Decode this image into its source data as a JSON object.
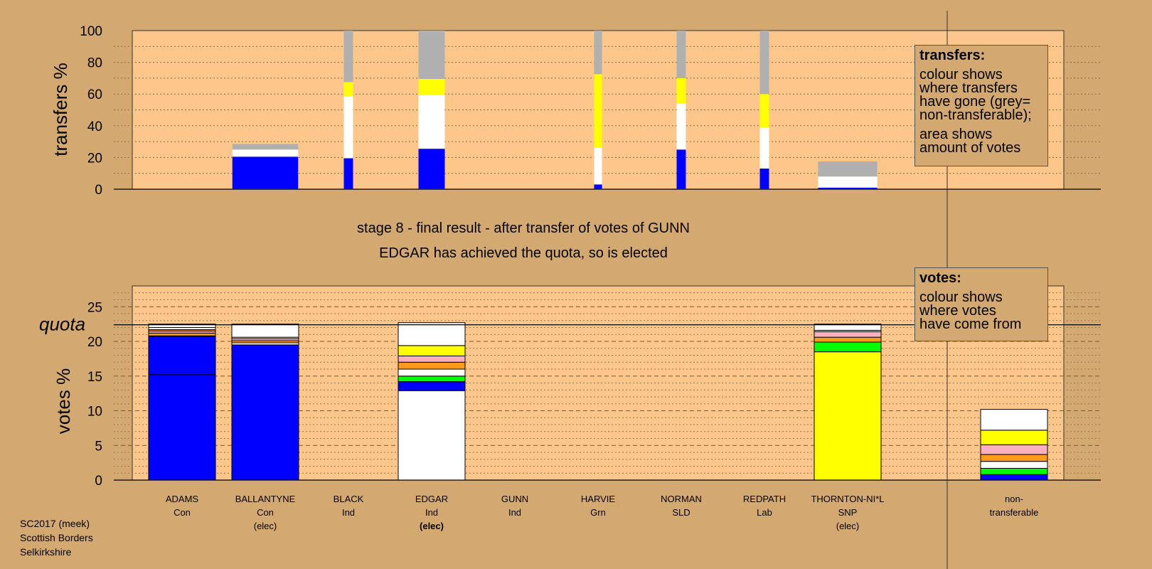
{
  "colors": {
    "page_bg": "#d4a871",
    "plot_bg": "#fdc68a",
    "Con": "#0000ff",
    "Ind_white": "#ffffff",
    "Grey": "#b0b0b0",
    "SNP": "#ffff00",
    "Grn": "#00ff00",
    "Orange": "#ff9a1a",
    "Pink": "#ffb0c0",
    "Lab": "#ff0000"
  },
  "stage": {
    "line1": "stage 8 - final result - after transfer of votes of GUNN",
    "line2": "EDGAR has achieved the quota, so is elected"
  },
  "legend_transfers": {
    "title": "transfers:",
    "lines": [
      "colour shows",
      "where transfers",
      "have gone (grey=",
      "non-transferable);"
    ],
    "lines2": [
      "area shows",
      "amount of votes"
    ]
  },
  "legend_votes": {
    "title": "votes:",
    "lines": [
      "colour shows",
      "where votes",
      "have come from"
    ]
  },
  "footer": {
    "line1": "SC2017 (meek)",
    "line2": "Scottish Borders",
    "line3": "Selkirkshire"
  },
  "candidates": [
    {
      "name": "ADAMS",
      "party": "Con",
      "status": ""
    },
    {
      "name": "BALLANTYNE",
      "party": "Con",
      "status": "(elec)"
    },
    {
      "name": "BLACK",
      "party": "Ind",
      "status": ""
    },
    {
      "name": "EDGAR",
      "party": "Ind",
      "status": "(elec)"
    },
    {
      "name": "GUNN",
      "party": "Ind",
      "status": ""
    },
    {
      "name": "HARVIE",
      "party": "Grn",
      "status": ""
    },
    {
      "name": "NORMAN",
      "party": "SLD",
      "status": ""
    },
    {
      "name": "REDPATH",
      "party": "Lab",
      "status": ""
    },
    {
      "name": "THORNTON-NI*L",
      "party": "SNP",
      "status": "(elec)"
    },
    {
      "name": "non-",
      "party": "transferable",
      "status": ""
    }
  ],
  "chart_data": [
    {
      "type": "bar",
      "ylabel": "transfers %",
      "ylim": [
        0,
        100
      ],
      "yticks": [
        0,
        20,
        40,
        60,
        80,
        100
      ],
      "grid": "dotted",
      "bars": [
        {
          "candidate": "BALLANTYNE",
          "width_weight": 2.5,
          "segments": [
            {
              "color": "Con",
              "value": 20.5
            },
            {
              "color": "Ind_white",
              "value": 4.5
            },
            {
              "color": "Grey",
              "value": 3.5
            }
          ]
        },
        {
          "candidate": "BLACK",
          "width_weight": 0.35,
          "segments": [
            {
              "color": "Con",
              "value": 19.5
            },
            {
              "color": "Ind_white",
              "value": 39
            },
            {
              "color": "SNP",
              "value": 9
            },
            {
              "color": "Grey",
              "value": 32.5
            }
          ]
        },
        {
          "candidate": "EDGAR",
          "width_weight": 1.0,
          "segments": [
            {
              "color": "Con",
              "value": 25.5
            },
            {
              "color": "Ind_white",
              "value": 34
            },
            {
              "color": "SNP",
              "value": 10
            },
            {
              "color": "Grey",
              "value": 30.5
            }
          ]
        },
        {
          "candidate": "HARVIE",
          "width_weight": 0.3,
          "segments": [
            {
              "color": "Con",
              "value": 3
            },
            {
              "color": "Ind_white",
              "value": 23
            },
            {
              "color": "SNP",
              "value": 46.5
            },
            {
              "color": "Grey",
              "value": 27.5
            }
          ]
        },
        {
          "candidate": "NORMAN",
          "width_weight": 0.35,
          "segments": [
            {
              "color": "Con",
              "value": 25
            },
            {
              "color": "Ind_white",
              "value": 29
            },
            {
              "color": "SNP",
              "value": 16
            },
            {
              "color": "Grey",
              "value": 30
            }
          ]
        },
        {
          "candidate": "REDPATH",
          "width_weight": 0.35,
          "segments": [
            {
              "color": "Con",
              "value": 13
            },
            {
              "color": "Ind_white",
              "value": 26
            },
            {
              "color": "SNP",
              "value": 21
            },
            {
              "color": "Grey",
              "value": 40
            }
          ]
        },
        {
          "candidate": "THORNTON-NI*L",
          "width_weight": 2.25,
          "segments": [
            {
              "color": "Con",
              "value": 1
            },
            {
              "color": "Ind_white",
              "value": 7
            },
            {
              "color": "Grey",
              "value": 9.5
            }
          ]
        }
      ]
    },
    {
      "type": "bar",
      "ylabel": "votes %",
      "ylim": [
        0,
        28
      ],
      "yticks": [
        0,
        5,
        10,
        15,
        20,
        25
      ],
      "quota": 22.4,
      "quota_label": "quota",
      "grid": "dotted/dashed",
      "bars": [
        {
          "candidate": "ADAMS",
          "segments": [
            {
              "color": "Con",
              "value": 15.2
            },
            {
              "color": "Con",
              "value": 5.5
            },
            {
              "color": "Grn",
              "value": 0.1
            },
            {
              "color": "Orange",
              "value": 0.4
            },
            {
              "color": "Pink",
              "value": 0.3
            },
            {
              "color": "Orange",
              "value": 0.2
            },
            {
              "color": "Ind_white",
              "value": 0.3
            },
            {
              "color": "Ind_white",
              "value": 0.5
            }
          ]
        },
        {
          "candidate": "BALLANTYNE",
          "segments": [
            {
              "color": "Con",
              "value": 19.5
            },
            {
              "color": "Ind_white",
              "value": 0.3
            },
            {
              "color": "Orange",
              "value": 0.3
            },
            {
              "color": "Pink",
              "value": 0.3
            },
            {
              "color": "Ind_white",
              "value": 0.2
            },
            {
              "color": "Ind_white",
              "value": 1.9
            }
          ]
        },
        {
          "candidate": "EDGAR",
          "segments": [
            {
              "color": "Ind_white",
              "value": 12.9
            },
            {
              "color": "Con",
              "value": 1.3
            },
            {
              "color": "Grn",
              "value": 0.8
            },
            {
              "color": "Ind_white",
              "value": 1.0
            },
            {
              "color": "Orange",
              "value": 1.0
            },
            {
              "color": "Pink",
              "value": 0.9
            },
            {
              "color": "SNP",
              "value": 1.5
            },
            {
              "color": "Ind_white",
              "value": 3.3
            }
          ]
        },
        {
          "candidate": "THORNTON-NI*L",
          "segments": [
            {
              "color": "SNP",
              "value": 18.5
            },
            {
              "color": "Grn",
              "value": 1.4
            },
            {
              "color": "Orange",
              "value": 0.7
            },
            {
              "color": "Pink",
              "value": 0.8
            },
            {
              "color": "Ind_white",
              "value": 0.2
            },
            {
              "color": "Ind_white",
              "value": 0.9
            }
          ]
        },
        {
          "candidate": "non-",
          "segments": [
            {
              "color": "Con",
              "value": 0.8
            },
            {
              "color": "Grn",
              "value": 0.9
            },
            {
              "color": "Ind_white",
              "value": 1.0
            },
            {
              "color": "Orange",
              "value": 1.0
            },
            {
              "color": "Pink",
              "value": 1.4
            },
            {
              "color": "SNP",
              "value": 2.1
            },
            {
              "color": "Ind_white",
              "value": 3.0
            }
          ]
        }
      ]
    }
  ]
}
